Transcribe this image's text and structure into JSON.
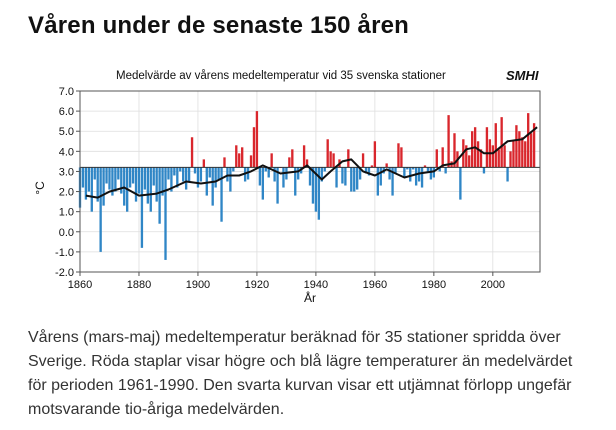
{
  "page": {
    "heading": "Våren under de senaste 150 åren",
    "caption": "Vårens (mars-maj) medeltemperatur beräknad för 35 stationer spridda över Sverige. Röda staplar visar högre och blå lägre temperaturer än medelvärdet för perioden 1961-1990. Den svarta kurvan visar ett utjämnat förlopp ungefär motsvarande tio-åriga medelvärden."
  },
  "chart_data": {
    "type": "bar",
    "title": "Medelvärde av vårens medeltemperatur vid 35 svenska stationer",
    "logo": "SMHI",
    "xlabel": "År",
    "ylabel": "°C",
    "baseline": 3.2,
    "xlim": [
      1860,
      2016
    ],
    "ylim": [
      -2.0,
      7.0
    ],
    "x_ticks": [
      "1860",
      "1880",
      "1900",
      "1920",
      "1940",
      "1960",
      "1980",
      "2000"
    ],
    "y_ticks": [
      "-2.0",
      "-1.0",
      "0.0",
      "1.0",
      "2.0",
      "3.0",
      "4.0",
      "5.0",
      "6.0",
      "7.0"
    ],
    "grid": true,
    "colors": {
      "above": "#d9262c",
      "below": "#2f86c6",
      "smooth": "#111111"
    },
    "start_year": 1860,
    "values": [
      1.2,
      2.2,
      1.6,
      2.0,
      1.0,
      2.6,
      1.5,
      -1.0,
      1.3,
      2.4,
      2.1,
      1.8,
      2.0,
      2.6,
      1.9,
      1.3,
      1.0,
      2.2,
      2.4,
      1.5,
      1.9,
      -0.8,
      2.1,
      1.4,
      1.0,
      2.3,
      1.5,
      0.4,
      1.8,
      -1.4,
      2.6,
      2.0,
      2.8,
      2.2,
      3.0,
      2.5,
      2.1,
      2.5,
      4.7,
      2.9,
      2.2,
      2.5,
      3.6,
      1.8,
      2.7,
      1.3,
      2.2,
      2.6,
      0.5,
      3.7,
      2.5,
      2.0,
      3.0,
      4.3,
      3.9,
      4.2,
      2.5,
      2.6,
      3.8,
      5.2,
      6.0,
      2.3,
      1.6,
      3.0,
      2.7,
      3.9,
      2.5,
      1.4,
      3.2,
      2.2,
      2.6,
      3.7,
      4.1,
      1.8,
      2.6,
      2.9,
      4.3,
      3.6,
      2.3,
      1.4,
      1.0,
      0.6,
      2.5,
      3.0,
      4.6,
      4.0,
      3.9,
      2.2,
      3.6,
      2.4,
      2.3,
      4.1,
      2.0,
      2.0,
      2.1,
      2.6,
      3.9,
      2.9,
      2.8,
      3.3,
      4.5,
      1.8,
      2.3,
      2.9,
      3.4,
      2.6,
      1.8,
      2.9,
      4.4,
      4.2,
      2.7,
      3.1,
      2.5,
      3.1,
      2.3,
      2.5,
      2.2,
      3.3,
      3.0,
      2.6,
      2.7,
      4.1,
      3.0,
      4.2,
      2.9,
      5.8,
      3.5,
      4.9,
      4.0,
      1.6,
      4.6,
      4.3,
      3.8,
      5.0,
      5.2,
      4.5,
      4.1,
      2.9,
      5.2,
      4.6,
      4.3,
      5.4,
      4.1,
      5.7,
      4.3,
      2.5,
      4.0,
      4.5,
      5.3,
      5.0,
      4.7,
      4.5,
      5.9,
      4.9,
      5.4
    ],
    "smooth_y": [
      [
        1862,
        1.8
      ],
      [
        1866,
        1.7
      ],
      [
        1870,
        2.0
      ],
      [
        1875,
        2.2
      ],
      [
        1880,
        1.8
      ],
      [
        1886,
        1.9
      ],
      [
        1890,
        2.1
      ],
      [
        1896,
        2.5
      ],
      [
        1901,
        2.4
      ],
      [
        1906,
        2.5
      ],
      [
        1910,
        2.8
      ],
      [
        1914,
        2.8
      ],
      [
        1918,
        3.0
      ],
      [
        1922,
        3.3
      ],
      [
        1928,
        2.9
      ],
      [
        1934,
        3.0
      ],
      [
        1937,
        3.3
      ],
      [
        1942,
        2.6
      ],
      [
        1945,
        3.0
      ],
      [
        1949,
        3.5
      ],
      [
        1952,
        3.6
      ],
      [
        1956,
        3.0
      ],
      [
        1960,
        2.8
      ],
      [
        1964,
        3.1
      ],
      [
        1970,
        2.7
      ],
      [
        1975,
        2.9
      ],
      [
        1980,
        3.0
      ],
      [
        1983,
        3.3
      ],
      [
        1987,
        3.4
      ],
      [
        1991,
        4.1
      ],
      [
        1994,
        4.2
      ],
      [
        1997,
        3.9
      ],
      [
        2000,
        3.9
      ],
      [
        2005,
        4.5
      ],
      [
        2010,
        4.6
      ],
      [
        2015,
        5.2
      ]
    ]
  }
}
